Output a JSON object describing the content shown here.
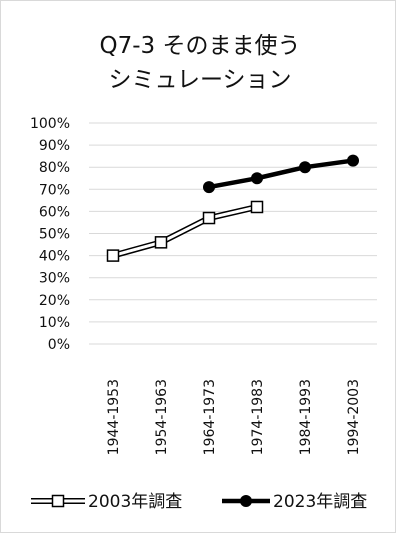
{
  "chart_data": {
    "type": "line",
    "title_line1": "Q7-3 そのまま使う",
    "title_line2": "シミュレーション",
    "categories": [
      "1944-1953",
      "1954-1963",
      "1964-1973",
      "1974-1983",
      "1984-1993",
      "1994-2003"
    ],
    "y_ticks": [
      "0%",
      "10%",
      "20%",
      "30%",
      "40%",
      "50%",
      "60%",
      "70%",
      "80%",
      "90%",
      "100%"
    ],
    "ylim": [
      0,
      100
    ],
    "grid": true,
    "legend_position": "bottom",
    "series": [
      {
        "name": "2003年調査",
        "values": [
          40,
          46,
          57,
          62,
          null,
          null
        ],
        "style": "double-line-open-square",
        "color": "#000000"
      },
      {
        "name": "2023年調査",
        "values": [
          null,
          null,
          71,
          75,
          80,
          83
        ],
        "style": "thick-line-filled-circle",
        "color": "#000000"
      }
    ]
  }
}
